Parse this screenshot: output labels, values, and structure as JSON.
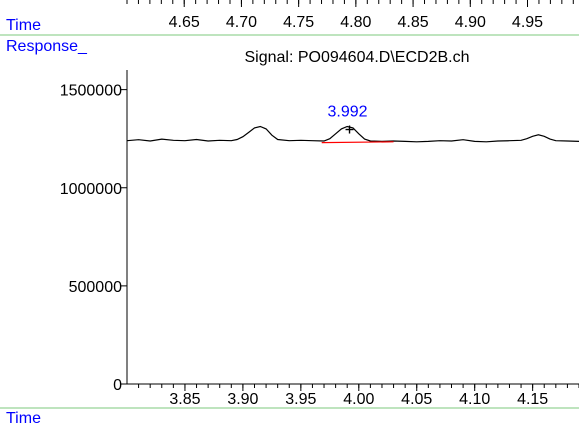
{
  "labels": {
    "top_time": "Time",
    "response": "Response_",
    "bottom_time": "Time"
  },
  "colors": {
    "label_blue": "#0000ff",
    "divider_green": "#7ec87e",
    "trace": "#000000",
    "baseline_red": "#ff0000",
    "axis": "#000000"
  },
  "top_axis": {
    "ticks": [
      "4.65",
      "4.70",
      "4.75",
      "4.80",
      "4.85",
      "4.90",
      "4.95"
    ],
    "tick_values": [
      4.65,
      4.7,
      4.75,
      4.8,
      4.85,
      4.9,
      4.95
    ],
    "range": [
      4.6,
      4.995
    ]
  },
  "chart_data": {
    "type": "line",
    "title": "Signal: PO094604.D\\ECD2B.ch",
    "xlabel": "Time",
    "ylabel": "Response_",
    "xlim": [
      3.8,
      4.19
    ],
    "ylim": [
      0,
      1600000
    ],
    "x_ticks": [
      3.85,
      3.9,
      3.95,
      4.0,
      4.05,
      4.1,
      4.15
    ],
    "x_tick_labels": [
      "3.85",
      "3.90",
      "3.95",
      "4.00",
      "4.05",
      "4.10",
      "4.15"
    ],
    "y_ticks": [
      0,
      500000,
      1000000,
      1500000
    ],
    "y_tick_labels": [
      "0",
      "500000",
      "1000000",
      "1500000"
    ],
    "series": [
      {
        "x": [
          3.8,
          3.81,
          3.82,
          3.83,
          3.84,
          3.85,
          3.86,
          3.87,
          3.88,
          3.89,
          3.895,
          3.9,
          3.905,
          3.91,
          3.915,
          3.92,
          3.925,
          3.93,
          3.94,
          3.95,
          3.96,
          3.97,
          3.975,
          3.98,
          3.985,
          3.99,
          3.995,
          4.0,
          4.005,
          4.01,
          4.02,
          4.03,
          4.04,
          4.05,
          4.06,
          4.07,
          4.08,
          4.09,
          4.1,
          4.11,
          4.12,
          4.13,
          4.14,
          4.145,
          4.15,
          4.155,
          4.16,
          4.165,
          4.17,
          4.18,
          4.19
        ],
        "y": [
          1240000,
          1245000,
          1238000,
          1248000,
          1242000,
          1240000,
          1246000,
          1238000,
          1242000,
          1240000,
          1246000,
          1260000,
          1282000,
          1305000,
          1312000,
          1300000,
          1268000,
          1246000,
          1240000,
          1242000,
          1240000,
          1238000,
          1250000,
          1275000,
          1300000,
          1312000,
          1305000,
          1275000,
          1248000,
          1238000,
          1236000,
          1238000,
          1236000,
          1234000,
          1236000,
          1240000,
          1238000,
          1245000,
          1236000,
          1234000,
          1238000,
          1240000,
          1242000,
          1250000,
          1262000,
          1270000,
          1262000,
          1248000,
          1240000,
          1238000,
          1236000
        ]
      }
    ],
    "annotations": [
      {
        "text": "3.992",
        "x": 3.992,
        "y": 1312000
      }
    ],
    "baseline_segment": {
      "x": [
        3.968,
        4.03
      ],
      "y": [
        1230000,
        1234000
      ]
    }
  }
}
